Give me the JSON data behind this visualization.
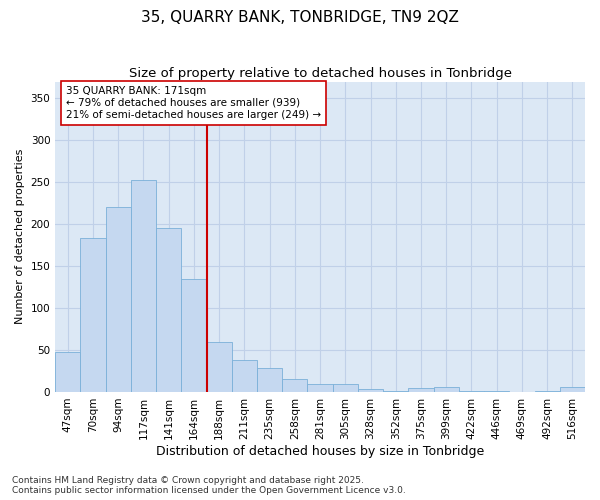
{
  "title": "35, QUARRY BANK, TONBRIDGE, TN9 2QZ",
  "subtitle": "Size of property relative to detached houses in Tonbridge",
  "xlabel": "Distribution of detached houses by size in Tonbridge",
  "ylabel": "Number of detached properties",
  "categories": [
    "47sqm",
    "70sqm",
    "94sqm",
    "117sqm",
    "141sqm",
    "164sqm",
    "188sqm",
    "211sqm",
    "235sqm",
    "258sqm",
    "281sqm",
    "305sqm",
    "328sqm",
    "352sqm",
    "375sqm",
    "399sqm",
    "422sqm",
    "446sqm",
    "469sqm",
    "492sqm",
    "516sqm"
  ],
  "values": [
    48,
    184,
    220,
    253,
    196,
    135,
    59,
    38,
    28,
    15,
    9,
    9,
    4,
    1,
    5,
    6,
    1,
    1,
    0,
    1,
    6
  ],
  "bar_color": "#c5d8f0",
  "bar_edge_color": "#7ab0d8",
  "vline_x": 5.5,
  "vline_color": "#cc0000",
  "annotation_line1": "35 QUARRY BANK: 171sqm",
  "annotation_line2": "← 79% of detached houses are smaller (939)",
  "annotation_line3": "21% of semi-detached houses are larger (249) →",
  "annotation_box_color": "#ffffff",
  "annotation_box_edge_color": "#cc0000",
  "ylim": [
    0,
    370
  ],
  "yticks": [
    0,
    50,
    100,
    150,
    200,
    250,
    300,
    350
  ],
  "grid_color": "#c0d0e8",
  "background_color": "#dce8f5",
  "footer_line1": "Contains HM Land Registry data © Crown copyright and database right 2025.",
  "footer_line2": "Contains public sector information licensed under the Open Government Licence v3.0.",
  "title_fontsize": 11,
  "subtitle_fontsize": 9.5,
  "xlabel_fontsize": 9,
  "ylabel_fontsize": 8,
  "tick_fontsize": 7.5,
  "footer_fontsize": 6.5,
  "annotation_fontsize": 7.5
}
